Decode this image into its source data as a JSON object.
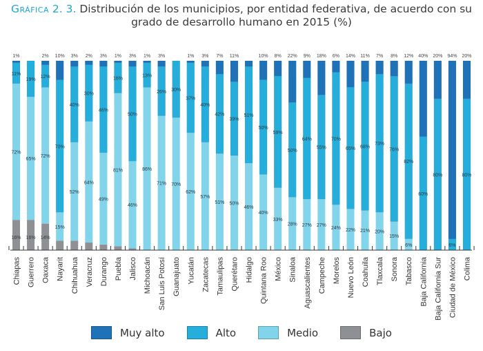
{
  "title": {
    "prefix": "Gráfica",
    "number": "2. 3.",
    "line1": "Distribución de los municipios, por entidad federativa, de acuerdo con su",
    "line2": "grado de desarrollo humano en 2015 (%)"
  },
  "chart_data": {
    "type": "bar",
    "stacked": true,
    "title": "Gráfica 2. 3. Distribución de los municipios, por entidad federativa, de acuerdo con su grado de desarrollo humano en 2015 (%)",
    "xlabel": "",
    "ylabel": "",
    "ylim": [
      0,
      100
    ],
    "grid": false,
    "legend_position": "bottom",
    "categories": [
      "Chiapas",
      "Guerrero",
      "Oaxaca",
      "Nayarit",
      "Chihuahua",
      "Veracruz",
      "Durango",
      "Puebla",
      "Jalisco",
      "Michoacán",
      "San Luis Potosí",
      "Guanajuato",
      "Yucatán",
      "Zacatecas",
      "Tamaulipas",
      "Querétaro",
      "Hidalgo",
      "Quintana Roo",
      "México",
      "Sinaloa",
      "Aguascalientes",
      "Campeche",
      "Morelos",
      "Nuevo León",
      "Coahuila",
      "Tlaxcala",
      "Sonora",
      "Tabasco",
      "Baja California",
      "Baja California Sur",
      "Ciudad de México",
      "Colima"
    ],
    "series": [
      {
        "name": "Bajo",
        "color": "#8f9094",
        "values": [
          16,
          16,
          14,
          5,
          5,
          4,
          3,
          2,
          1,
          0,
          0,
          0,
          0,
          0,
          0,
          0,
          0,
          0,
          0,
          0,
          0,
          0,
          0,
          0,
          0,
          0,
          0,
          0,
          0,
          0,
          0,
          0
        ]
      },
      {
        "name": "Medio",
        "color": "#82d4ea",
        "values": [
          72,
          65,
          72,
          15,
          52,
          64,
          49,
          81,
          46,
          86,
          71,
          70,
          62,
          57,
          51,
          50,
          46,
          40,
          33,
          28,
          27,
          27,
          24,
          22,
          21,
          20,
          15,
          6,
          0,
          0,
          0,
          0
        ]
      },
      {
        "name": "Alto",
        "color": "#25aedb",
        "values": [
          11,
          19,
          12,
          70,
          40,
          30,
          46,
          16,
          50,
          13,
          26,
          30,
          37,
          40,
          42,
          39,
          51,
          50,
          59,
          50,
          64,
          55,
          70,
          65,
          68,
          73,
          76,
          82,
          60,
          80,
          6,
          80
        ]
      },
      {
        "name": "Muy alto",
        "color": "#2072b8",
        "values": [
          1,
          0,
          2,
          10,
          3,
          2,
          3,
          1,
          3,
          1,
          3,
          0,
          1,
          3,
          7,
          11,
          3,
          10,
          8,
          22,
          9,
          18,
          6,
          14,
          11,
          7,
          8,
          12,
          40,
          20,
          94,
          20
        ]
      }
    ],
    "labels": {
      "Muy alto": [
        "1%",
        "",
        "2%",
        "10%",
        "3%",
        "2%",
        "3%",
        "1%",
        "3%",
        "1%",
        "3%",
        "",
        "1%",
        "3%",
        "7%",
        "11%",
        "",
        "10%",
        "8%",
        "22%",
        "9%",
        "18%",
        "6%",
        "14%",
        "11%",
        "7%",
        "8%",
        "12%",
        "40%",
        "20%",
        "94%",
        "20%"
      ],
      "Alto": [
        "11%",
        "19%",
        "12%",
        "70%",
        "40%",
        "30%",
        "46%",
        "16%",
        "50%",
        "13%",
        "26%",
        "30%",
        "37%",
        "40%",
        "42%",
        "39%",
        "51%",
        "50%",
        "59%",
        "50%",
        "64%",
        "55%",
        "70%",
        "65%",
        "68%",
        "73%",
        "76%",
        "82%",
        "60%",
        "80%",
        "6%",
        "80%"
      ],
      "Medio": [
        "72%",
        "65%",
        "72%",
        "15%",
        "52%",
        "64%",
        "49%",
        "81%",
        "46%",
        "86%",
        "71%",
        "70%",
        "62%",
        "57%",
        "51%",
        "50%",
        "46%",
        "40%",
        "33%",
        "28%",
        "27%",
        "27%",
        "24%",
        "22%",
        "21%",
        "20%",
        "15%",
        "6%",
        "",
        "",
        "",
        ""
      ],
      "Bajo": [
        "16%",
        "16%",
        "14%",
        "5%",
        "5%",
        "4%",
        "3%",
        "2%",
        "1%",
        "",
        "",
        "",
        "",
        "",
        "",
        "",
        "",
        "",
        "",
        "",
        "",
        "",
        "",
        "",
        "",
        "",
        "",
        "",
        "",
        "",
        "",
        ""
      ]
    }
  },
  "legend": [
    {
      "label": "Muy alto",
      "color": "#2072b8"
    },
    {
      "label": "Alto",
      "color": "#25aedb"
    },
    {
      "label": "Medio",
      "color": "#82d4ea"
    },
    {
      "label": "Bajo",
      "color": "#8f9094"
    }
  ]
}
